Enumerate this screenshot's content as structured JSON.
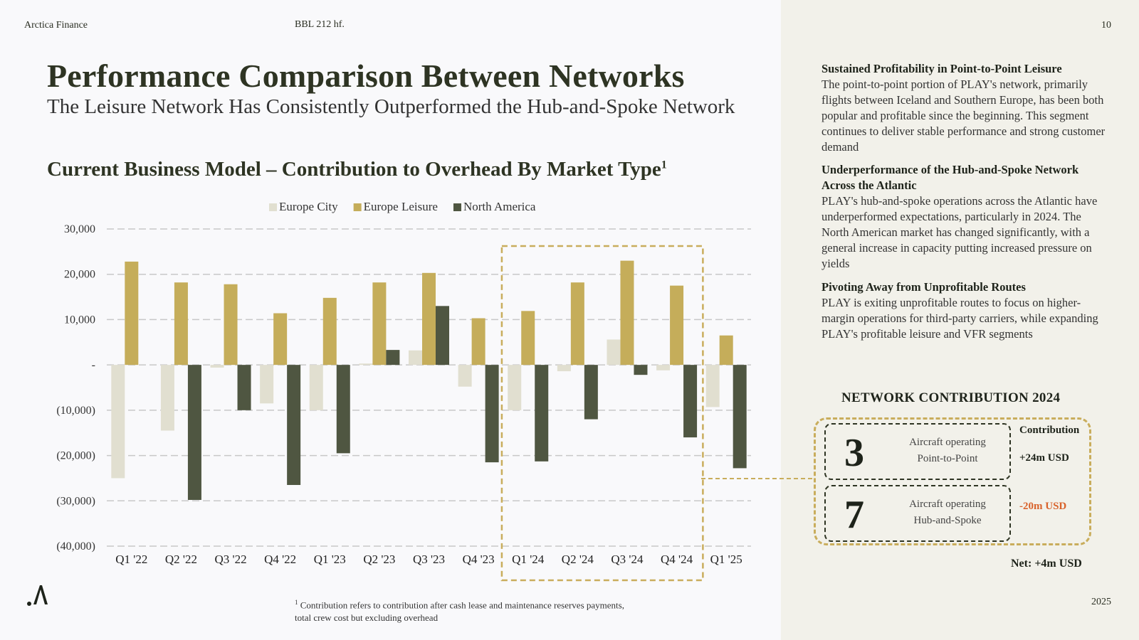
{
  "header": {
    "brand": "Arctica Finance",
    "code": "BBL 212 hf.",
    "page_number": "10",
    "year": "2025"
  },
  "title": "Performance Comparison Between Networks",
  "subtitle": "The Leisure Network Has Consistently Outperformed the Hub-and-Spoke Network",
  "chart_title": "Current Business Model – Contribution to Overhead By Market Type",
  "chart_title_sup": "1",
  "footnote": {
    "marker": "1",
    "line1": "Contribution refers to contribution after cash lease and maintenance reserves payments,",
    "line2": "total crew cost but excluding overhead"
  },
  "right_panel": {
    "sections": [
      {
        "heading": "Sustained Profitability in Point-to-Point Leisure",
        "body": "The point-to-point portion of PLAY's network, primarily flights between Iceland and Southern Europe, has been both popular and profitable since the beginning. This segment continues to deliver stable performance and strong customer demand"
      },
      {
        "heading": "Underperformance of the Hub-and-Spoke Network Across the Atlantic",
        "body": "PLAY's hub-and-spoke operations across the Atlantic have underperformed expectations, particularly in 2024. The North American market has changed significantly, with a general increase in capacity putting increased pressure on yields"
      },
      {
        "heading": "Pivoting Away from Unprofitable Routes",
        "body": "PLAY is exiting unprofitable routes to focus on higher-margin operations for third-party carriers, while expanding PLAY's profitable leisure and VFR segments"
      }
    ],
    "network_contribution": {
      "title": "NETWORK CONTRIBUTION 2024",
      "column_header": "Contribution",
      "rows": [
        {
          "number": "3",
          "desc_line1": "Aircraft operating",
          "desc_line2": "Point-to-Point",
          "value": "+24m USD"
        },
        {
          "number": "7",
          "desc_line1": "Aircraft operating",
          "desc_line2": "Hub-and-Spoke",
          "value": "-20m USD"
        }
      ],
      "net": "Net: +4m USD"
    }
  },
  "colors": {
    "europe_city": "#e1dfd0",
    "europe_leisure": "#c5ad5a",
    "north_america": "#4f5641",
    "highlight": "#c9ad5c",
    "negative": "#d9622b"
  },
  "chart_data": {
    "type": "bar",
    "categories": [
      "Q1 '22",
      "Q2 '22",
      "Q3 '22",
      "Q4 '22",
      "Q1 '23",
      "Q2 '23",
      "Q3 '23",
      "Q4 '23",
      "Q1 '24",
      "Q2 '24",
      "Q3 '24",
      "Q4 '24",
      "Q1 '25"
    ],
    "series": [
      {
        "name": "Europe City",
        "values": [
          -25000,
          -14500,
          -600,
          -8500,
          -10000,
          300,
          3200,
          -4800,
          -10000,
          -1400,
          5600,
          -1200,
          -9300
        ]
      },
      {
        "name": "Europe Leisure",
        "values": [
          22800,
          18200,
          17800,
          11400,
          14800,
          18200,
          20300,
          10300,
          11900,
          18200,
          23000,
          17500,
          6500
        ]
      },
      {
        "name": "North America",
        "values": [
          0,
          -29800,
          -10000,
          -26500,
          -19500,
          3300,
          13000,
          -21500,
          -21300,
          -12000,
          -2200,
          -16000,
          -22800
        ]
      }
    ],
    "ylim": [
      -40000,
      30000
    ],
    "yticks": [
      30000,
      20000,
      10000,
      0,
      -10000,
      -20000,
      -30000,
      -40000
    ],
    "ytick_labels": [
      "30,000",
      "20,000",
      "10,000",
      "-",
      "(10,000)",
      "(20,000)",
      "(30,000)",
      "(40,000)"
    ],
    "highlight_categories": [
      "Q1 '24",
      "Q2 '24",
      "Q3 '24",
      "Q4 '24"
    ],
    "legend_position": "top-center",
    "grid": true,
    "title": "Current Business Model – Contribution to Overhead By Market Type",
    "xlabel": "",
    "ylabel": ""
  }
}
